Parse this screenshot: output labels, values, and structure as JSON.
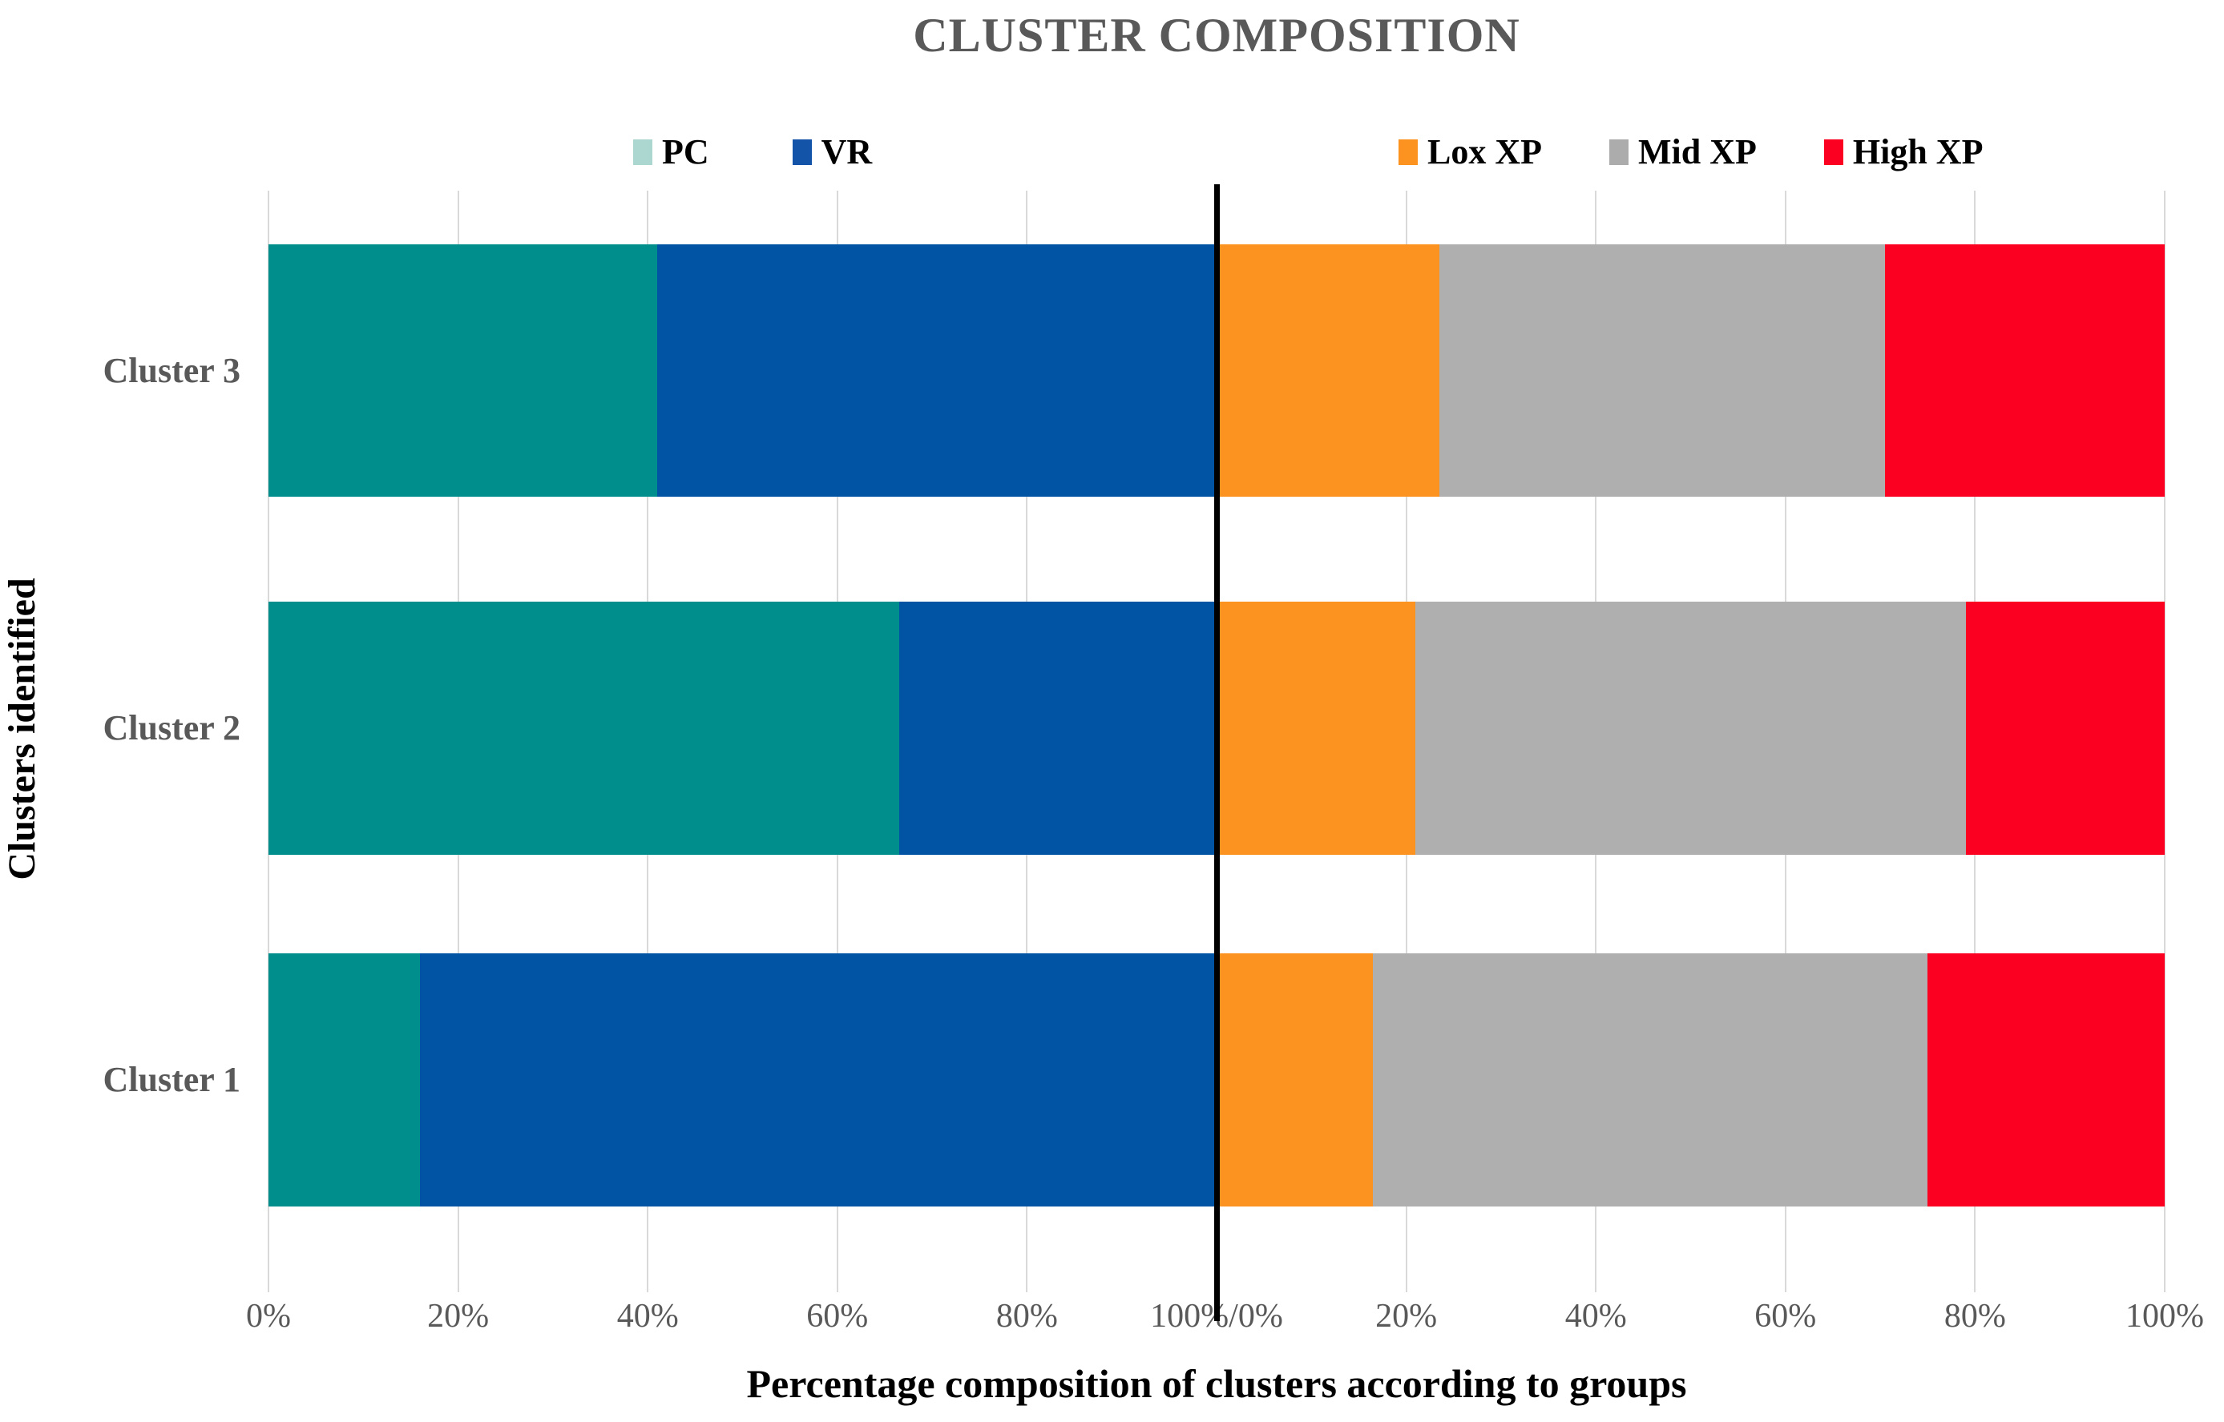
{
  "title": "CLUSTER COMPOSITION",
  "y_axis_title": "Clusters identified",
  "x_axis_title": "Percentage composition of clusters according to groups",
  "legend": {
    "left": [
      {
        "label": "PC",
        "color": "#abd7d0"
      },
      {
        "label": "VR",
        "color": "#1353a8"
      }
    ],
    "right": [
      {
        "label": "Lox XP",
        "color": "#fc9220"
      },
      {
        "label": "Mid XP",
        "color": "#acacac"
      },
      {
        "label": "High XP",
        "color": "#fb0021"
      }
    ]
  },
  "x_ticks": [
    "0%",
    "20%",
    "40%",
    "60%",
    "80%",
    "100%/0%",
    "20%",
    "40%",
    "60%",
    "80%",
    "100%"
  ],
  "chart_data": {
    "type": "bar",
    "subtype": "dual-horizontal-stacked-100pct",
    "title": "CLUSTER COMPOSITION",
    "xlabel": "Percentage composition of clusters according to groups",
    "ylabel": "Clusters identified",
    "axis_note": "two mirrored 0-100% axes sharing a center line labeled 100%/0%",
    "xlim_left_chart": [
      0,
      100
    ],
    "xlim_right_chart": [
      0,
      100
    ],
    "grid": true,
    "legend_position": "top",
    "left_series": [
      {
        "name": "PC",
        "color": "#008e8c"
      },
      {
        "name": "VR",
        "color": "#0054a3"
      }
    ],
    "right_series": [
      {
        "name": "Lox XP",
        "color": "#fc9220"
      },
      {
        "name": "Mid XP",
        "color": "#afafaf"
      },
      {
        "name": "High XP",
        "color": "#fb0021"
      }
    ],
    "rows": [
      {
        "category": "Cluster 3",
        "left": [
          41,
          59
        ],
        "right": [
          23.5,
          47,
          29.5
        ]
      },
      {
        "category": "Cluster 2",
        "left": [
          66.5,
          33.5
        ],
        "right": [
          21,
          58,
          21
        ]
      },
      {
        "category": "Cluster 1",
        "left": [
          16,
          84
        ],
        "right": [
          16.5,
          58.5,
          25
        ]
      }
    ]
  }
}
